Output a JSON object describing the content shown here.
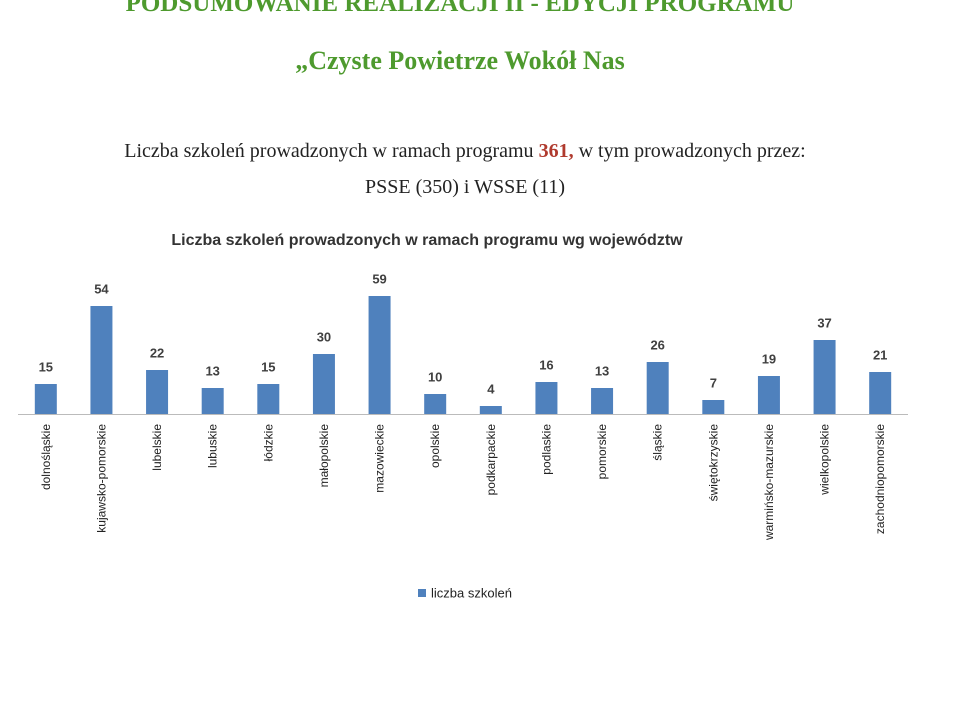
{
  "slide": {
    "title": "PODSUMOWANIE REALIZACJI II - EDYCJI PROGRAMU",
    "subtitle": "„Czyste Powietrze Wokół Nas",
    "text_parts": [
      "Liczba szkoleń prowadzonych w ramach programu ",
      "361,",
      " w tym prowadzonych przez:"
    ],
    "text_line2": "PSSE (350) i WSSE (11)"
  },
  "chart_data": {
    "type": "bar",
    "title": "Liczba szkoleń prowadzonych w ramach programu wg województw",
    "categories": [
      "dolnośląskie",
      "kujawsko-pomorskie",
      "lubelskie",
      "lubuskie",
      "łódzkie",
      "małopolskie",
      "mazowieckie",
      "opolskie",
      "podkarpackie",
      "podlaskie",
      "pomorskie",
      "śląskie",
      "świętokrzyskie",
      "warmińsko-mazurskie",
      "wielkopolskie",
      "zachodniopomorskie"
    ],
    "series": [
      {
        "name": "liczba szkoleń",
        "color": "#4f81bd",
        "values": [
          15,
          54,
          22,
          13,
          15,
          30,
          59,
          10,
          4,
          16,
          13,
          26,
          7,
          19,
          37,
          21
        ]
      }
    ],
    "legend": "bottom"
  }
}
